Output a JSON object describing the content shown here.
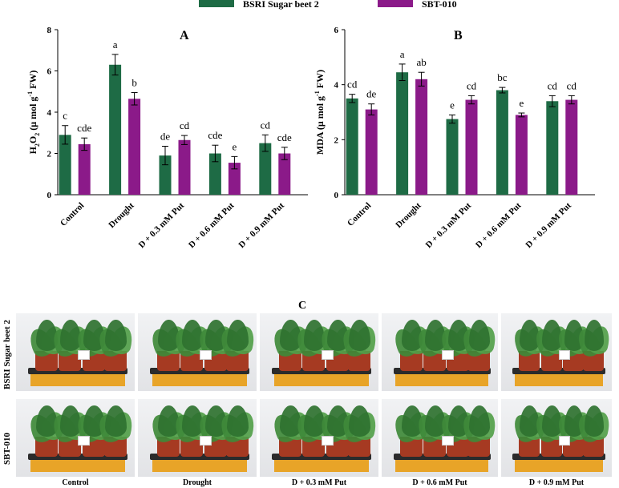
{
  "legend": {
    "items": [
      {
        "name": "BSRI Sugar beet 2",
        "color": "#1e6b45"
      },
      {
        "name": "SBT-010",
        "color": "#8b1a89"
      }
    ]
  },
  "chart_data": [
    {
      "type": "bar",
      "panel": "A",
      "categories": [
        "Control",
        "Drought",
        "D + 0.3 mM Put",
        "D + 0.6 mM Put",
        "D + 0.9 mM Put"
      ],
      "ylabel_main": "H",
      "ylabel_sub": "2",
      "ylabel_main2": "O",
      "ylabel_sub2": "2",
      "ylabel_rest": " (μ mol g",
      "ylabel_sup": "-1",
      "ylabel_end": " FW)",
      "ylim": [
        0,
        8
      ],
      "yticks": [
        "0",
        "2",
        "4",
        "6",
        "8"
      ],
      "series": [
        {
          "name": "BSRI Sugar beet 2",
          "values": [
            2.9,
            6.3,
            1.9,
            2.0,
            2.5
          ],
          "errors": [
            0.45,
            0.5,
            0.45,
            0.4,
            0.4
          ],
          "letters": [
            "c",
            "a",
            "de",
            "cde",
            "cd"
          ]
        },
        {
          "name": "SBT-010",
          "values": [
            2.45,
            4.65,
            2.65,
            1.55,
            2.0
          ],
          "errors": [
            0.3,
            0.3,
            0.22,
            0.3,
            0.3
          ],
          "letters": [
            "cde",
            "b",
            "cd",
            "e",
            "cde"
          ]
        }
      ]
    },
    {
      "type": "bar",
      "panel": "B",
      "categories": [
        "Control",
        "Drought",
        "D + 0.3 mM Put",
        "D + 0.6 mM Put",
        "D + 0.9 mM Put"
      ],
      "ylabel_main": "MDA (μ mol g",
      "ylabel_sup": "-1",
      "ylabel_end": " FW)",
      "ylim": [
        0,
        6
      ],
      "yticks": [
        "0",
        "2",
        "4",
        "6"
      ],
      "series": [
        {
          "name": "BSRI Sugar beet 2",
          "values": [
            3.5,
            4.45,
            2.75,
            3.8,
            3.4
          ],
          "errors": [
            0.15,
            0.3,
            0.15,
            0.1,
            0.2
          ],
          "letters": [
            "cd",
            "a",
            "e",
            "bc",
            "cd"
          ]
        },
        {
          "name": "SBT-010",
          "values": [
            3.1,
            4.2,
            3.45,
            2.9,
            3.45
          ],
          "errors": [
            0.2,
            0.25,
            0.15,
            0.07,
            0.15
          ],
          "letters": [
            "de",
            "ab",
            "cd",
            "e",
            "cd"
          ]
        }
      ]
    }
  ],
  "photos": {
    "title": "C",
    "rows": [
      "BSRI Sugar beet 2",
      "SBT-010"
    ],
    "columns": [
      "Control",
      "Drought",
      "D + 0.3 mM Put",
      "D + 0.6 mM Put",
      "D + 0.9 mM Put"
    ]
  }
}
